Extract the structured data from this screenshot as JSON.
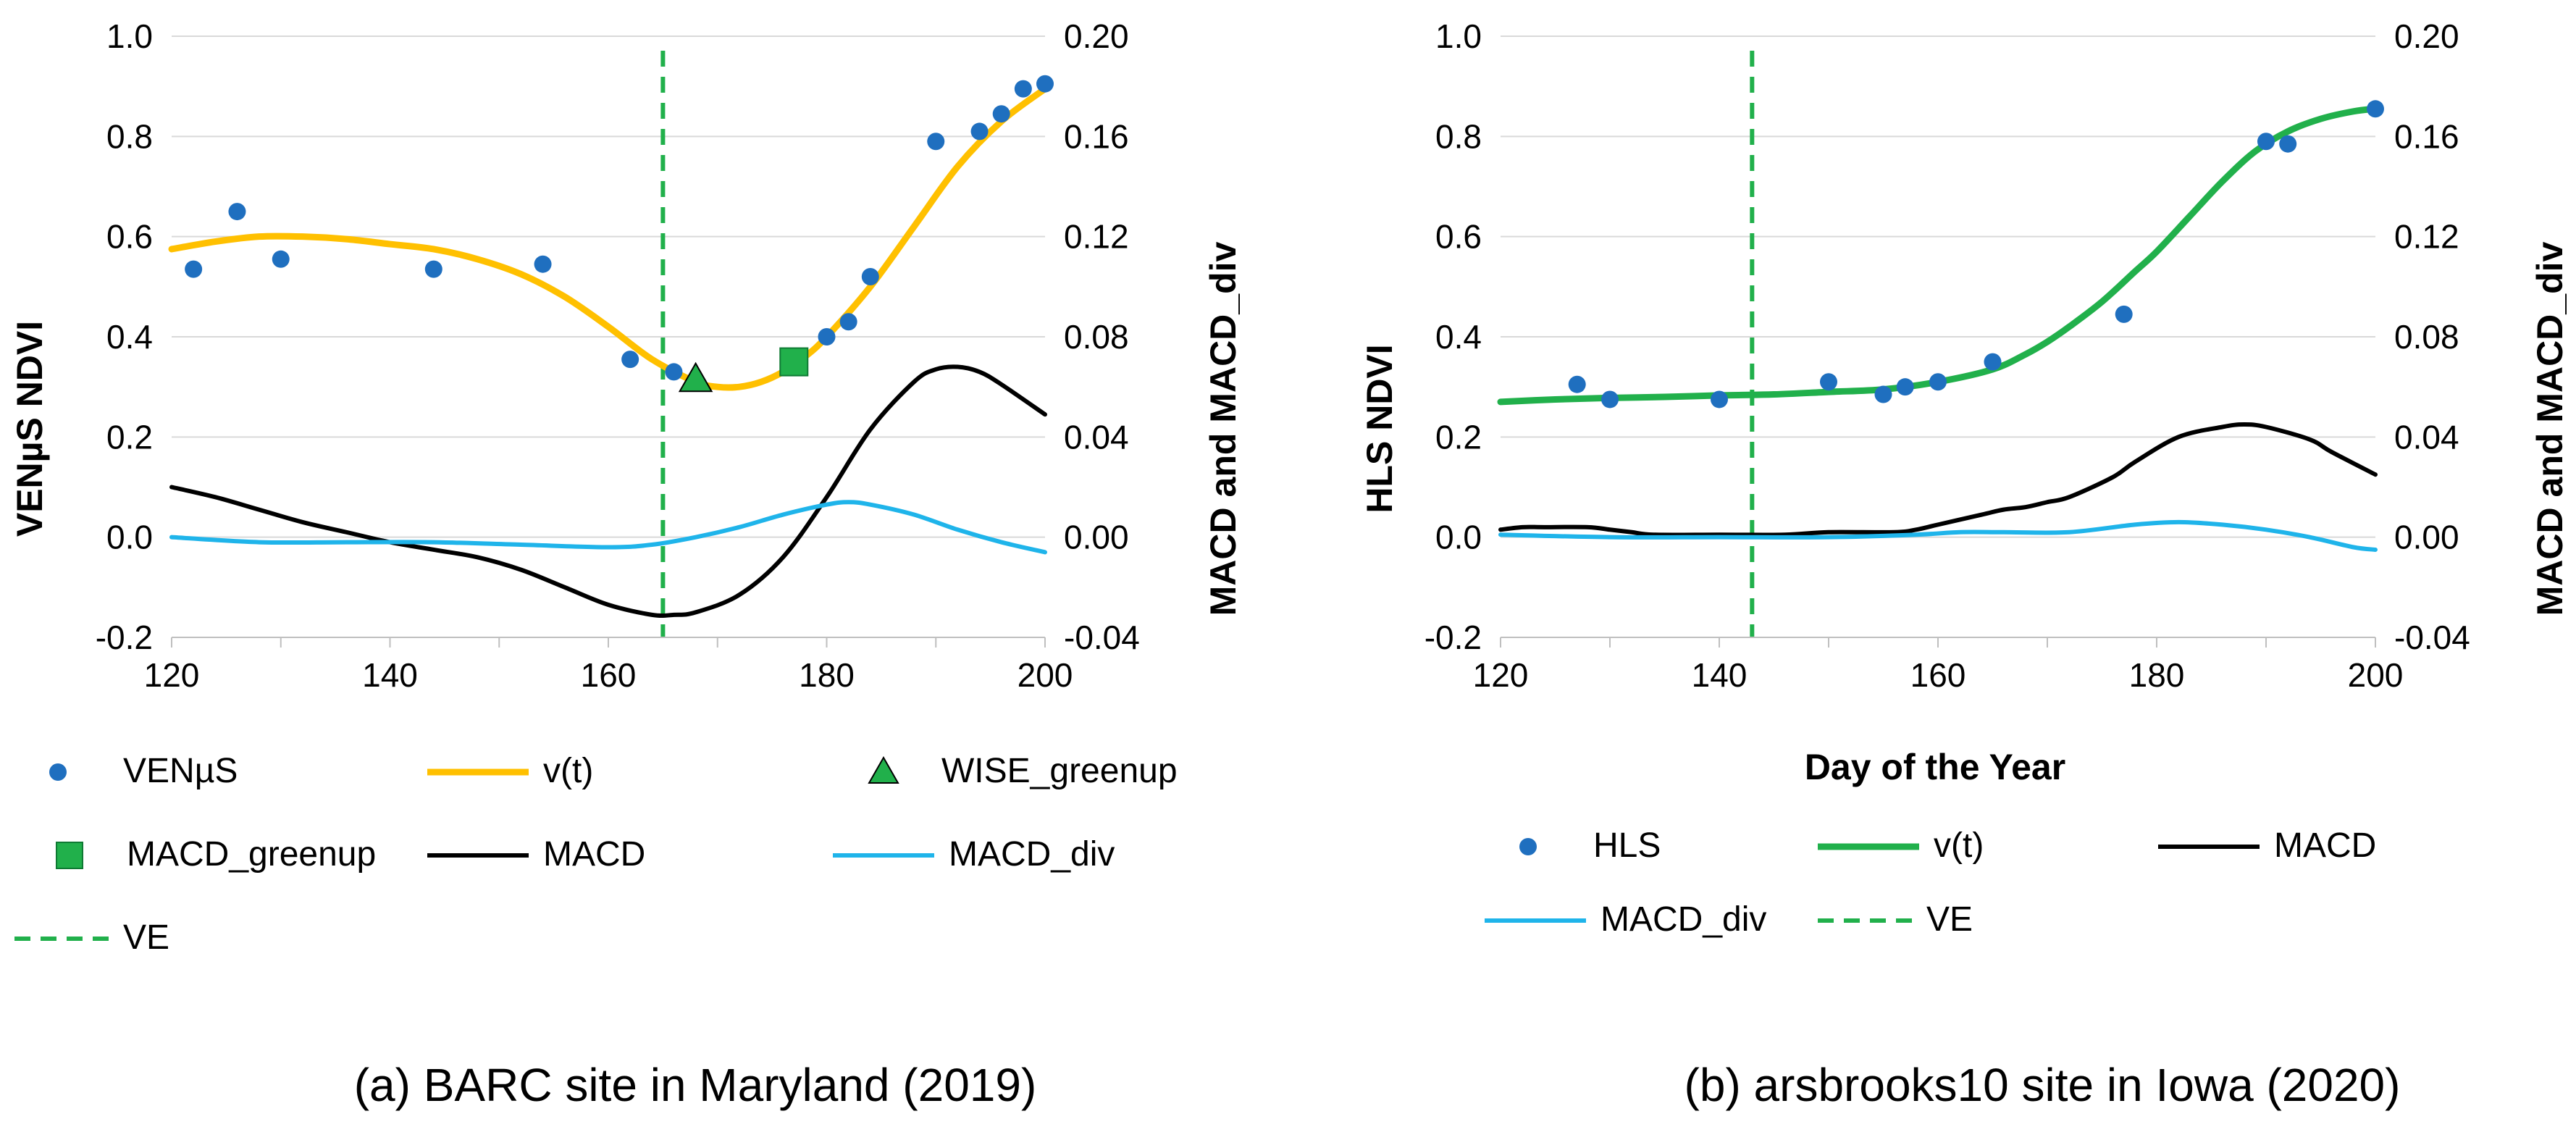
{
  "chart_data": [
    {
      "type": "line",
      "caption": "(a) BARC site in Maryland (2019)",
      "xlabel": "",
      "ylabel": "VENµS NDVI",
      "y2label": "MACD and MACD_div",
      "xlim": [
        120,
        200
      ],
      "ylim": [
        -0.2,
        1.0
      ],
      "y2lim": [
        -0.04,
        0.2
      ],
      "xticks": [
        "120",
        "140",
        "160",
        "180",
        "200"
      ],
      "yticks": [
        "-0.2",
        "0.0",
        "0.2",
        "0.4",
        "0.6",
        "0.8",
        "1.0"
      ],
      "y2ticks": [
        "-0.04",
        "0.00",
        "0.04",
        "0.08",
        "0.12",
        "0.16",
        "0.20"
      ],
      "grid": true,
      "colors": {
        "obs": "#1f6fbf",
        "vt": "#ffc000",
        "macd": "#000000",
        "div": "#1fb4ea",
        "ve": "#21b04b",
        "marker": "#21b04b"
      },
      "series": [
        {
          "name": "VENµS",
          "kind": "scatter",
          "axis": "left",
          "x": [
            122,
            126,
            130,
            144,
            154,
            162,
            166,
            180,
            182,
            184,
            190,
            194,
            196,
            198,
            200
          ],
          "y": [
            0.535,
            0.65,
            0.555,
            0.535,
            0.545,
            0.355,
            0.33,
            0.4,
            0.43,
            0.52,
            0.79,
            0.81,
            0.845,
            0.895,
            0.905
          ]
        },
        {
          "name": "v(t)",
          "kind": "line",
          "axis": "left",
          "x": [
            120,
            124,
            128,
            132,
            136,
            140,
            144,
            148,
            152,
            156,
            160,
            164,
            168,
            170,
            172,
            174,
            176,
            178,
            180,
            184,
            188,
            192,
            196,
            200
          ],
          "y": [
            0.575,
            0.59,
            0.6,
            0.6,
            0.595,
            0.585,
            0.575,
            0.555,
            0.525,
            0.48,
            0.42,
            0.355,
            0.31,
            0.3,
            0.3,
            0.31,
            0.33,
            0.36,
            0.4,
            0.5,
            0.62,
            0.74,
            0.83,
            0.895
          ]
        },
        {
          "name": "WISE_greenup",
          "kind": "triangle",
          "axis": "left",
          "x": [
            168
          ],
          "y": [
            0.315
          ]
        },
        {
          "name": "MACD_greenup",
          "kind": "square",
          "axis": "left",
          "x": [
            177
          ],
          "y": [
            0.35
          ]
        },
        {
          "name": "MACD",
          "kind": "line",
          "axis": "right",
          "x": [
            120,
            124,
            128,
            132,
            136,
            140,
            144,
            148,
            152,
            156,
            160,
            164,
            166,
            168,
            172,
            176,
            180,
            184,
            188,
            190,
            192,
            194,
            196,
            200
          ],
          "y": [
            0.02,
            0.016,
            0.011,
            0.006,
            0.002,
            -0.002,
            -0.005,
            -0.008,
            -0.013,
            -0.02,
            -0.027,
            -0.031,
            -0.031,
            -0.03,
            -0.023,
            -0.008,
            0.016,
            0.043,
            0.062,
            0.067,
            0.068,
            0.066,
            0.061,
            0.049
          ]
        },
        {
          "name": "MACD_div",
          "kind": "line",
          "axis": "right",
          "x": [
            120,
            128,
            136,
            144,
            152,
            160,
            164,
            168,
            172,
            176,
            180,
            182,
            184,
            188,
            192,
            196,
            200
          ],
          "y": [
            0.0,
            -0.002,
            -0.002,
            -0.002,
            -0.003,
            -0.004,
            -0.003,
            0.0,
            0.004,
            0.009,
            0.013,
            0.014,
            0.013,
            0.009,
            0.003,
            -0.002,
            -0.006
          ]
        },
        {
          "name": "VE",
          "kind": "vline",
          "axis": "left",
          "x": [
            165
          ]
        }
      ],
      "legend": [
        {
          "label": "VENµS",
          "swatch": "dot"
        },
        {
          "label": "v(t)",
          "swatch": "line"
        },
        {
          "label": "WISE_greenup",
          "swatch": "triangle"
        },
        {
          "label": "MACD_greenup",
          "swatch": "square"
        },
        {
          "label": "MACD",
          "swatch": "line"
        },
        {
          "label": "MACD_div",
          "swatch": "line"
        },
        {
          "label": "VE",
          "swatch": "dashed"
        }
      ]
    },
    {
      "type": "line",
      "caption": "(b) arsbrooks10 site in Iowa (2020)",
      "xlabel": "Day of the Year",
      "ylabel": "HLS NDVI",
      "y2label": "MACD and MACD_div",
      "xlim": [
        120,
        200
      ],
      "ylim": [
        -0.2,
        1.0
      ],
      "y2lim": [
        -0.04,
        0.2
      ],
      "xticks": [
        "120",
        "140",
        "160",
        "180",
        "200"
      ],
      "yticks": [
        "-0.2",
        "0.0",
        "0.2",
        "0.4",
        "0.6",
        "0.8",
        "1.0"
      ],
      "y2ticks": [
        "-0.04",
        "0.00",
        "0.04",
        "0.08",
        "0.12",
        "0.16",
        "0.20"
      ],
      "grid": true,
      "colors": {
        "obs": "#1f6fbf",
        "vt": "#21b04b",
        "macd": "#000000",
        "div": "#1fb4ea",
        "ve": "#21b04b"
      },
      "series": [
        {
          "name": "HLS",
          "kind": "scatter",
          "axis": "left",
          "x": [
            127,
            130,
            140,
            150,
            155,
            157,
            160,
            165,
            177,
            190,
            192,
            200
          ],
          "y": [
            0.305,
            0.275,
            0.275,
            0.31,
            0.285,
            0.3,
            0.31,
            0.35,
            0.445,
            0.79,
            0.785,
            0.855
          ]
        },
        {
          "name": "v(t)",
          "kind": "line",
          "axis": "left",
          "x": [
            120,
            125,
            130,
            135,
            140,
            145,
            150,
            155,
            160,
            165,
            168,
            170,
            172,
            175,
            178,
            180,
            183,
            186,
            189,
            192,
            195,
            198,
            200
          ],
          "y": [
            0.27,
            0.275,
            0.278,
            0.28,
            0.283,
            0.285,
            0.29,
            0.295,
            0.31,
            0.335,
            0.365,
            0.39,
            0.42,
            0.47,
            0.53,
            0.57,
            0.64,
            0.71,
            0.77,
            0.81,
            0.835,
            0.85,
            0.855
          ]
        },
        {
          "name": "MACD",
          "kind": "line",
          "axis": "right",
          "x": [
            120,
            122,
            124,
            128,
            130,
            132,
            134,
            140,
            146,
            150,
            156,
            158,
            160,
            164,
            166,
            168,
            170,
            172,
            176,
            178,
            182,
            186,
            188,
            190,
            194,
            196,
            200
          ],
          "y": [
            0.003,
            0.004,
            0.004,
            0.004,
            0.003,
            0.002,
            0.001,
            0.001,
            0.001,
            0.002,
            0.002,
            0.003,
            0.005,
            0.009,
            0.011,
            0.012,
            0.014,
            0.016,
            0.024,
            0.03,
            0.04,
            0.044,
            0.045,
            0.044,
            0.039,
            0.034,
            0.025
          ]
        },
        {
          "name": "MACD_div",
          "kind": "line",
          "axis": "right",
          "x": [
            120,
            130,
            140,
            150,
            158,
            162,
            166,
            172,
            178,
            182,
            186,
            190,
            194,
            198,
            200
          ],
          "y": [
            0.001,
            0.0,
            0.0,
            0.0,
            0.001,
            0.002,
            0.002,
            0.002,
            0.005,
            0.006,
            0.005,
            0.003,
            0.0,
            -0.004,
            -0.005
          ]
        },
        {
          "name": "VE",
          "kind": "vline",
          "axis": "left",
          "x": [
            143
          ]
        }
      ],
      "legend": [
        {
          "label": "HLS",
          "swatch": "dot"
        },
        {
          "label": "v(t)",
          "swatch": "line"
        },
        {
          "label": "MACD",
          "swatch": "line"
        },
        {
          "label": "MACD_div",
          "swatch": "line"
        },
        {
          "label": "VE",
          "swatch": "dashed"
        }
      ]
    }
  ]
}
